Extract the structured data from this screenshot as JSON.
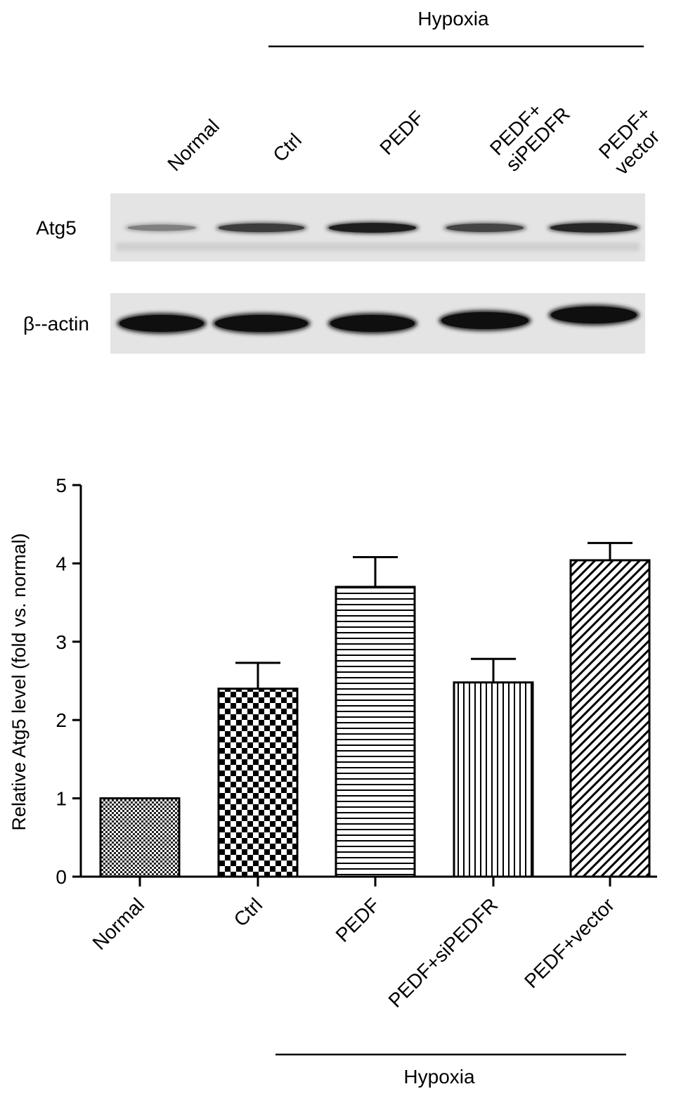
{
  "blot": {
    "group_label": "Hypoxia",
    "lanes": [
      {
        "lines": [
          "Normal"
        ]
      },
      {
        "lines": [
          "Ctrl"
        ]
      },
      {
        "lines": [
          "PEDF"
        ]
      },
      {
        "lines": [
          "PEDF+",
          "siPEDFR"
        ]
      },
      {
        "lines": [
          "PEDF+",
          "vector"
        ]
      }
    ],
    "rows": [
      {
        "label": "Atg5",
        "band_intensity": [
          0.25,
          0.7,
          0.9,
          0.65,
          0.85
        ]
      },
      {
        "label": "β--actin",
        "band_intensity": [
          1,
          1,
          1,
          1,
          1
        ]
      }
    ]
  },
  "chart_data": {
    "type": "bar",
    "categories": [
      "Normal",
      "Ctrl",
      "PEDF",
      "PEDF+siPEDFR",
      "PEDF+vector"
    ],
    "values": [
      1.0,
      2.4,
      3.7,
      2.48,
      4.04
    ],
    "errors": [
      0,
      0.33,
      0.38,
      0.3,
      0.22
    ],
    "patterns": [
      "fine-checker",
      "checkerboard",
      "horizontal-stripes",
      "vertical-stripes",
      "diagonal-stripes"
    ],
    "ylabel": "Relative Atg5 level (fold vs. normal)",
    "yticks": [
      0,
      1,
      2,
      3,
      4,
      5
    ],
    "ylim": [
      0,
      5
    ],
    "group_label": "Hypoxia",
    "grid": false
  }
}
